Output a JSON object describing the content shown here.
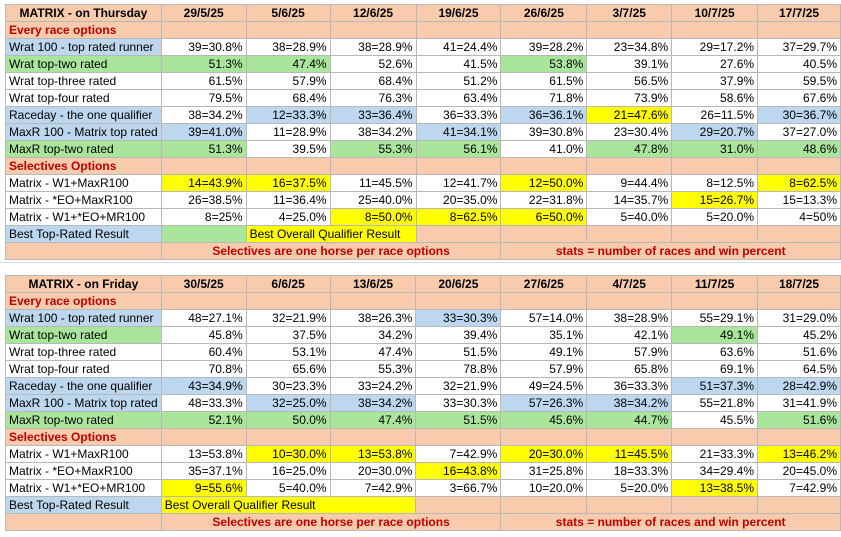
{
  "tables": [
    {
      "title": "MATRIX - on Thursday",
      "dates": [
        "29/5/25",
        "5/6/25",
        "12/6/25",
        "19/6/25",
        "26/6/25",
        "3/7/25",
        "10/7/25",
        "17/7/25"
      ],
      "rows": [
        {
          "type": "section",
          "label": "Every race options"
        },
        {
          "type": "data",
          "label": "Wrat 100 - top rated runner",
          "label_bg": "b",
          "cells": [
            [
              "39=30.8%",
              "w"
            ],
            [
              "38=28.9%",
              "w"
            ],
            [
              "38=28.9%",
              "w"
            ],
            [
              "41=24.4%",
              "w"
            ],
            [
              "39=28.2%",
              "w"
            ],
            [
              "23=34.8%",
              "w"
            ],
            [
              "29=17.2%",
              "w"
            ],
            [
              "37=29.7%",
              "w"
            ]
          ]
        },
        {
          "type": "data",
          "label": "Wrat top-two rated",
          "label_bg": "g",
          "cells": [
            [
              "51.3%",
              "g"
            ],
            [
              "47.4%",
              "g"
            ],
            [
              "52.6%",
              "w"
            ],
            [
              "41.5%",
              "w"
            ],
            [
              "53.8%",
              "g"
            ],
            [
              "39.1%",
              "w"
            ],
            [
              "27.6%",
              "w"
            ],
            [
              "40.5%",
              "w"
            ]
          ]
        },
        {
          "type": "data",
          "label": "Wrat top-three rated",
          "label_bg": "w",
          "cells": [
            [
              "61.5%",
              "w"
            ],
            [
              "57.9%",
              "w"
            ],
            [
              "68.4%",
              "w"
            ],
            [
              "51.2%",
              "w"
            ],
            [
              "61.5%",
              "w"
            ],
            [
              "56.5%",
              "w"
            ],
            [
              "37.9%",
              "w"
            ],
            [
              "59.5%",
              "w"
            ]
          ]
        },
        {
          "type": "data",
          "label": "Wrat top-four rated",
          "label_bg": "w",
          "cells": [
            [
              "79.5%",
              "w"
            ],
            [
              "68.4%",
              "w"
            ],
            [
              "76.3%",
              "w"
            ],
            [
              "63.4%",
              "w"
            ],
            [
              "71.8%",
              "w"
            ],
            [
              "73.9%",
              "w"
            ],
            [
              "58.6%",
              "w"
            ],
            [
              "67.6%",
              "w"
            ]
          ]
        },
        {
          "type": "data",
          "label": "Raceday - the one qualifier",
          "label_bg": "b",
          "cells": [
            [
              "38=34.2%",
              "w"
            ],
            [
              "12=33.3%",
              "b"
            ],
            [
              "33=36.4%",
              "b"
            ],
            [
              "36=33.3%",
              "w"
            ],
            [
              "36=36.1%",
              "b"
            ],
            [
              "21=47.6%",
              "y"
            ],
            [
              "26=11.5%",
              "w"
            ],
            [
              "30=36.7%",
              "b"
            ]
          ]
        },
        {
          "type": "data",
          "label": "MaxR 100 - Matrix top rated",
          "label_bg": "b",
          "cells": [
            [
              "39=41.0%",
              "b"
            ],
            [
              "11=28.9%",
              "w"
            ],
            [
              "38=34.2%",
              "w"
            ],
            [
              "41=34.1%",
              "b"
            ],
            [
              "39=30.8%",
              "w"
            ],
            [
              "23=30.4%",
              "w"
            ],
            [
              "29=20.7%",
              "b"
            ],
            [
              "37=27.0%",
              "w"
            ]
          ]
        },
        {
          "type": "data",
          "label": "MaxR top-two rated",
          "label_bg": "g",
          "cells": [
            [
              "51.3%",
              "g"
            ],
            [
              "39.5%",
              "w"
            ],
            [
              "55.3%",
              "g"
            ],
            [
              "56.1%",
              "g"
            ],
            [
              "41.0%",
              "w"
            ],
            [
              "47.8%",
              "g"
            ],
            [
              "31.0%",
              "g"
            ],
            [
              "48.6%",
              "g"
            ]
          ]
        },
        {
          "type": "section",
          "label": "Selectives Options"
        },
        {
          "type": "data",
          "label": "Matrix - W1+MaxR100",
          "label_bg": "w",
          "cells": [
            [
              "14=43.9%",
              "y"
            ],
            [
              "16=37.5%",
              "y"
            ],
            [
              "11=45.5%",
              "w"
            ],
            [
              "12=41.7%",
              "w"
            ],
            [
              "12=50.0%",
              "y"
            ],
            [
              "9=44.4%",
              "w"
            ],
            [
              "8=12.5%",
              "w"
            ],
            [
              "8=62.5%",
              "y"
            ]
          ]
        },
        {
          "type": "data",
          "label": "Matrix - *EO+MaxR100",
          "label_bg": "w",
          "cells": [
            [
              "26=38.5%",
              "w"
            ],
            [
              "11=36.4%",
              "w"
            ],
            [
              "25=40.0%",
              "w"
            ],
            [
              "20=35.0%",
              "w"
            ],
            [
              "22=31.8%",
              "w"
            ],
            [
              "14=35.7%",
              "w"
            ],
            [
              "15=26.7%",
              "y"
            ],
            [
              "15=13.3%",
              "w"
            ]
          ]
        },
        {
          "type": "data",
          "label": "Matrix - W1+*EO+MR100",
          "label_bg": "w",
          "cells": [
            [
              "8=25%",
              "w"
            ],
            [
              "4=25.0%",
              "w"
            ],
            [
              "8=50.0%",
              "y"
            ],
            [
              "8=62.5%",
              "y"
            ],
            [
              "6=50.0%",
              "y"
            ],
            [
              "5=40.0%",
              "w"
            ],
            [
              "5=20.0%",
              "w"
            ],
            [
              "4=50%",
              "w"
            ]
          ]
        },
        {
          "type": "legend",
          "label": "Best Top-Rated Result",
          "label_bg": "b",
          "swatch_bg": "g",
          "yellow_text": "Best Overall Qualifier Result"
        },
        {
          "type": "footer",
          "left": "Selectives are one horse per race options",
          "right": "stats = number of races and win percent"
        }
      ]
    },
    {
      "title": "MATRIX - on Friday",
      "dates": [
        "30/5/25",
        "6/6/25",
        "13/6/25",
        "20/6/25",
        "27/6/25",
        "4/7/25",
        "11/7/25",
        "18/7/25"
      ],
      "rows": [
        {
          "type": "section",
          "label": "Every race options"
        },
        {
          "type": "data",
          "label": "Wrat 100 - top rated runner",
          "label_bg": "b",
          "cells": [
            [
              "48=27.1%",
              "w"
            ],
            [
              "32=21.9%",
              "w"
            ],
            [
              "38=26.3%",
              "w"
            ],
            [
              "33=30.3%",
              "b"
            ],
            [
              "57=14.0%",
              "w"
            ],
            [
              "38=28.9%",
              "w"
            ],
            [
              "55=29.1%",
              "w"
            ],
            [
              "31=29.0%",
              "w"
            ]
          ]
        },
        {
          "type": "data",
          "label": "Wrat top-two rated",
          "label_bg": "g",
          "cells": [
            [
              "45.8%",
              "w"
            ],
            [
              "37.5%",
              "w"
            ],
            [
              "34.2%",
              "w"
            ],
            [
              "39.4%",
              "w"
            ],
            [
              "35.1%",
              "w"
            ],
            [
              "42.1%",
              "w"
            ],
            [
              "49.1%",
              "g"
            ],
            [
              "45.2%",
              "w"
            ]
          ]
        },
        {
          "type": "data",
          "label": "Wrat top-three rated",
          "label_bg": "w",
          "cells": [
            [
              "60.4%",
              "w"
            ],
            [
              "53.1%",
              "w"
            ],
            [
              "47.4%",
              "w"
            ],
            [
              "51.5%",
              "w"
            ],
            [
              "49.1%",
              "w"
            ],
            [
              "57.9%",
              "w"
            ],
            [
              "63.6%",
              "w"
            ],
            [
              "51.6%",
              "w"
            ]
          ]
        },
        {
          "type": "data",
          "label": "Wrat top-four rated",
          "label_bg": "w",
          "cells": [
            [
              "70.8%",
              "w"
            ],
            [
              "65.6%",
              "w"
            ],
            [
              "55.3%",
              "w"
            ],
            [
              "78.8%",
              "w"
            ],
            [
              "57.9%",
              "w"
            ],
            [
              "65.8%",
              "w"
            ],
            [
              "69.1%",
              "w"
            ],
            [
              "64.5%",
              "w"
            ]
          ]
        },
        {
          "type": "data",
          "label": "Raceday - the one qualifier",
          "label_bg": "b",
          "cells": [
            [
              "43=34.9%",
              "b"
            ],
            [
              "30=23.3%",
              "w"
            ],
            [
              "33=24.2%",
              "w"
            ],
            [
              "32=21.9%",
              "w"
            ],
            [
              "49=24.5%",
              "w"
            ],
            [
              "36=33.3%",
              "w"
            ],
            [
              "51=37.3%",
              "b"
            ],
            [
              "28=42.9%",
              "b"
            ]
          ]
        },
        {
          "type": "data",
          "label": "MaxR 100 - Matrix top rated",
          "label_bg": "b",
          "cells": [
            [
              "48=33.3%",
              "w"
            ],
            [
              "32=25.0%",
              "b"
            ],
            [
              "38=34.2%",
              "b"
            ],
            [
              "33=30.3%",
              "w"
            ],
            [
              "57=26.3%",
              "b"
            ],
            [
              "38=34.2%",
              "b"
            ],
            [
              "55=21.8%",
              "w"
            ],
            [
              "31=41.9%",
              "w"
            ]
          ]
        },
        {
          "type": "data",
          "label": "MaxR top-two rated",
          "label_bg": "g",
          "cells": [
            [
              "52.1%",
              "g"
            ],
            [
              "50.0%",
              "g"
            ],
            [
              "47.4%",
              "g"
            ],
            [
              "51.5%",
              "g"
            ],
            [
              "45.6%",
              "g"
            ],
            [
              "44.7%",
              "g"
            ],
            [
              "45.5%",
              "w"
            ],
            [
              "51.6%",
              "g"
            ]
          ]
        },
        {
          "type": "section",
          "label": "Selectives Options"
        },
        {
          "type": "data",
          "label": "Matrix - W1+MaxR100",
          "label_bg": "w",
          "cells": [
            [
              "13=53.8%",
              "w"
            ],
            [
              "10=30.0%",
              "y"
            ],
            [
              "13=53.8%",
              "y"
            ],
            [
              "7=42.9%",
              "w"
            ],
            [
              "20=30.0%",
              "y"
            ],
            [
              "11=45.5%",
              "y"
            ],
            [
              "21=33.3%",
              "w"
            ],
            [
              "13=46.2%",
              "y"
            ]
          ]
        },
        {
          "type": "data",
          "label": "Matrix - *EO+MaxR100",
          "label_bg": "w",
          "cells": [
            [
              "35=37.1%",
              "w"
            ],
            [
              "16=25.0%",
              "w"
            ],
            [
              "20=30.0%",
              "w"
            ],
            [
              "16=43.8%",
              "y"
            ],
            [
              "31=25.8%",
              "w"
            ],
            [
              "18=33.3%",
              "w"
            ],
            [
              "34=29.4%",
              "w"
            ],
            [
              "20=45.0%",
              "w"
            ]
          ]
        },
        {
          "type": "data",
          "label": "Matrix - W1+*EO+MR100",
          "label_bg": "w",
          "cells": [
            [
              "9=55.6%",
              "y"
            ],
            [
              "5=40.0%",
              "w"
            ],
            [
              "7=42.9%",
              "w"
            ],
            [
              "3=66.7%",
              "w"
            ],
            [
              "10=20.0%",
              "w"
            ],
            [
              "5=20.0%",
              "w"
            ],
            [
              "13=38.5%",
              "y"
            ],
            [
              "7=42.9%",
              "w"
            ]
          ]
        },
        {
          "type": "legend",
          "label": "Best Top-Rated Result",
          "label_bg": "b",
          "swatch_bg": "y",
          "yellow_text": "Best Overall Qualifier Result"
        },
        {
          "type": "footer",
          "left": "Selectives are one horse per race options",
          "right": "stats = number of races and win percent"
        }
      ]
    }
  ]
}
